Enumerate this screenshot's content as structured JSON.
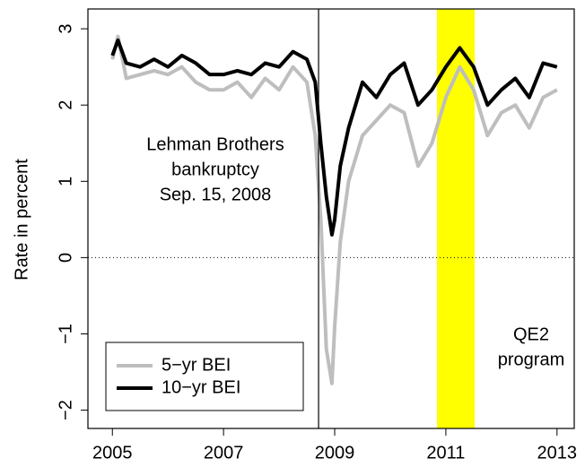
{
  "chart_data": {
    "type": "line",
    "y_label": "Rate in percent",
    "x": [
      2005.0,
      2005.1,
      2005.25,
      2005.5,
      2005.75,
      2006.0,
      2006.25,
      2006.5,
      2006.75,
      2007.0,
      2007.25,
      2007.5,
      2007.75,
      2008.0,
      2008.25,
      2008.5,
      2008.65,
      2008.75,
      2008.85,
      2008.95,
      2009.0,
      2009.1,
      2009.25,
      2009.5,
      2009.75,
      2010.0,
      2010.25,
      2010.5,
      2010.75,
      2011.0,
      2011.25,
      2011.5,
      2011.75,
      2012.0,
      2012.25,
      2012.5,
      2012.75,
      2013.0
    ],
    "series": [
      {
        "name": "5−yr BEI",
        "color": "#bebebe",
        "values": [
          2.6,
          2.9,
          2.35,
          2.4,
          2.45,
          2.4,
          2.5,
          2.3,
          2.2,
          2.2,
          2.3,
          2.1,
          2.35,
          2.2,
          2.5,
          2.3,
          1.6,
          0.5,
          -1.2,
          -1.65,
          -0.9,
          0.2,
          1.0,
          1.6,
          1.8,
          2.0,
          1.9,
          1.2,
          1.5,
          2.1,
          2.5,
          2.2,
          1.6,
          1.9,
          2.0,
          1.7,
          2.1,
          2.2
        ]
      },
      {
        "name": "10−yr BEI",
        "color": "#000000",
        "values": [
          2.65,
          2.85,
          2.55,
          2.5,
          2.6,
          2.5,
          2.65,
          2.55,
          2.4,
          2.4,
          2.45,
          2.4,
          2.55,
          2.5,
          2.7,
          2.6,
          2.3,
          1.5,
          0.8,
          0.3,
          0.5,
          1.2,
          1.7,
          2.3,
          2.1,
          2.4,
          2.55,
          2.0,
          2.2,
          2.5,
          2.75,
          2.5,
          2.0,
          2.2,
          2.35,
          2.1,
          2.55,
          2.5
        ]
      }
    ],
    "xlim": [
      2004.56,
      2013.31
    ],
    "xticks": [
      2005,
      2007,
      2009,
      2011,
      2013
    ],
    "ylim": [
      -2.24,
      3.26
    ],
    "yticks": [
      {
        "value": -2,
        "label": "−2"
      },
      {
        "value": -1,
        "label": "−1"
      },
      0,
      1,
      2,
      3
    ],
    "hline": 0,
    "vline": 2008.71,
    "band": [
      2010.84,
      2011.52
    ],
    "band_color": "#ffff00",
    "legend": "bottom-left",
    "annotations": [
      [
        "Lehman Brothers",
        "bankruptcy",
        "Sep. 15, 2008"
      ],
      [
        "QE2",
        "program"
      ]
    ]
  }
}
